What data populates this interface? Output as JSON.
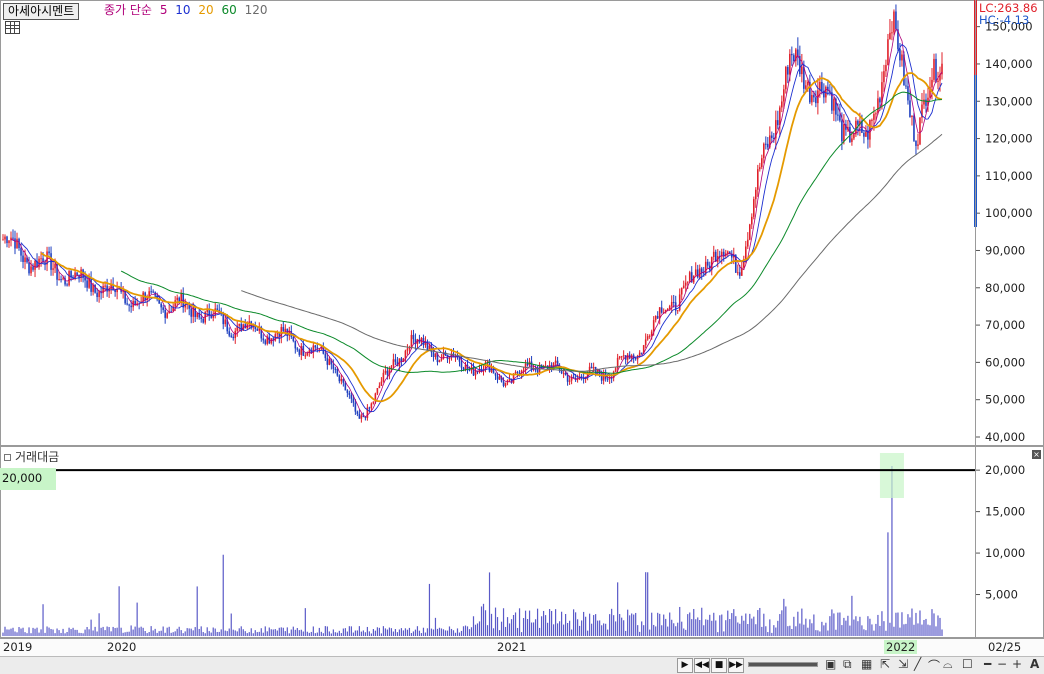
{
  "header": {
    "stock_name": "아세아시멘트",
    "ma_label": "종가 단순",
    "ma_periods": [
      "5",
      "10",
      "20",
      "60",
      "120"
    ],
    "ma_colors": [
      "#b0007a",
      "#1c2fd0",
      "#e59a00",
      "#0c8a2a",
      "#6b6b6b"
    ],
    "lc": "LC:263.86",
    "hc": "HC:-4.13"
  },
  "colors": {
    "up": "#e0202a",
    "down": "#1e3fbf",
    "volume": "#5a5ac8",
    "highlight": "#c8f5c8"
  },
  "price_axis": {
    "ticks": [
      "40,000",
      "50,000",
      "60,000",
      "70,000",
      "80,000",
      "90,000",
      "100,000",
      "110,000",
      "120,000",
      "130,000",
      "140,000",
      "150,000"
    ]
  },
  "volume_axis": {
    "ticks": [
      "5,000",
      "10,000",
      "15,000",
      "20,000"
    ]
  },
  "indicator": {
    "title": "거래대금",
    "line_label": "20,000"
  },
  "x_axis": {
    "ticks": [
      "2019",
      "2020",
      "2021",
      "2022",
      "02/25"
    ]
  },
  "toolbar": {
    "buttons": [
      "▶",
      "◀◀",
      "■",
      "▶▶"
    ],
    "right_icons": [
      "A"
    ]
  },
  "chart_data": {
    "type": "candlestick",
    "x_range": [
      "2019",
      "2022-02-25"
    ],
    "price_ylim": [
      40000,
      155000
    ],
    "volume_ylim": [
      0,
      22000
    ],
    "volume_reference_line": 20000,
    "close_series": [
      [
        "2019-01",
        93000
      ],
      [
        "2019-02",
        88000
      ],
      [
        "2019-03",
        85000
      ],
      [
        "2019-04",
        82000
      ],
      [
        "2019-05",
        80000
      ],
      [
        "2019-06",
        77000
      ],
      [
        "2019-07",
        76000
      ],
      [
        "2019-08",
        75000
      ],
      [
        "2019-09",
        73000
      ],
      [
        "2019-10",
        70000
      ],
      [
        "2019-11",
        69000
      ],
      [
        "2019-12",
        67000
      ],
      [
        "2020-01",
        64000
      ],
      [
        "2020-02",
        60000
      ],
      [
        "2020-03",
        44000
      ],
      [
        "2020-04",
        55000
      ],
      [
        "2020-05",
        66000
      ],
      [
        "2020-06",
        63000
      ],
      [
        "2020-07",
        60000
      ],
      [
        "2020-08",
        58000
      ],
      [
        "2020-09",
        55000
      ],
      [
        "2020-10",
        60000
      ],
      [
        "2020-11",
        57000
      ],
      [
        "2020-12",
        56000
      ],
      [
        "2021-01",
        58000
      ],
      [
        "2021-02",
        63000
      ],
      [
        "2021-03",
        74000
      ],
      [
        "2021-04",
        80000
      ],
      [
        "2021-05",
        90000
      ],
      [
        "2021-06",
        86000
      ],
      [
        "2021-07",
        115000
      ],
      [
        "2021-08",
        140000
      ],
      [
        "2021-09",
        135000
      ],
      [
        "2021-10",
        125000
      ],
      [
        "2021-11",
        118000
      ],
      [
        "2021-12",
        150000
      ],
      [
        "2022-01",
        122000
      ],
      [
        "2022-02",
        142000
      ]
    ],
    "volume_peak": 20500
  }
}
